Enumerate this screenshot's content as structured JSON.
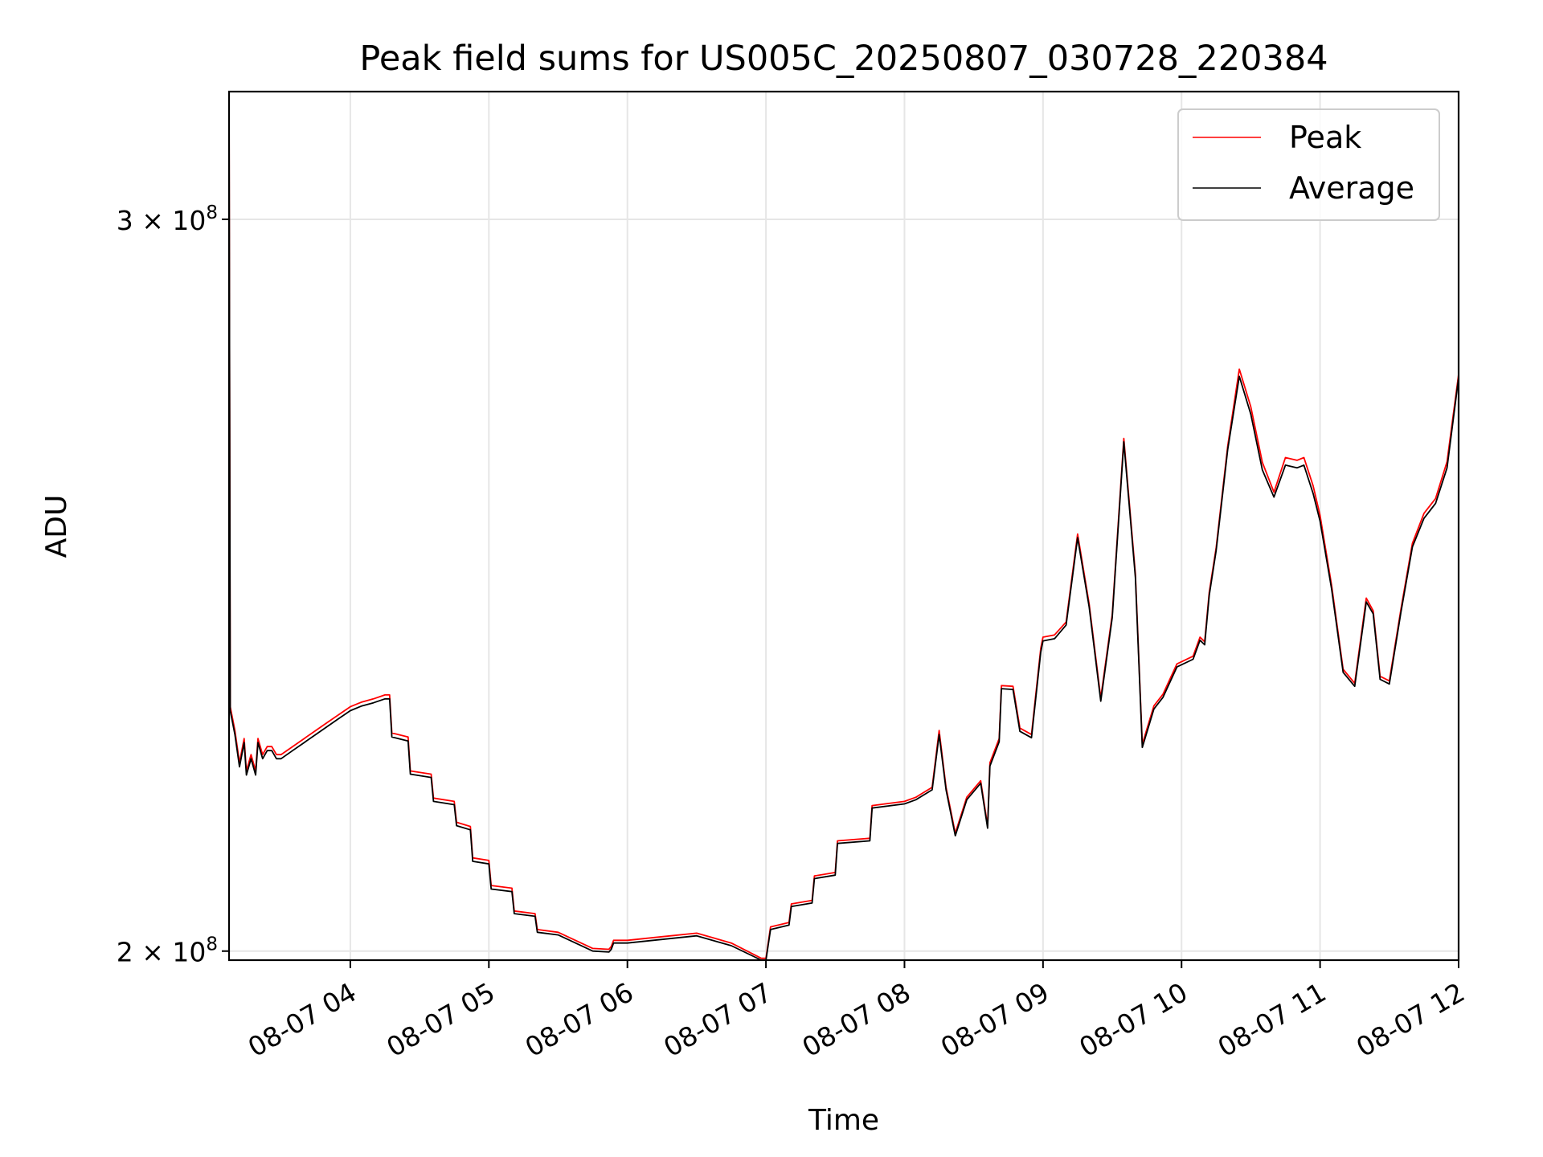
{
  "chart_data": {
    "type": "line",
    "title": "Peak field sums for US005C_20250807_030728_220384",
    "xlabel": "Time",
    "ylabel": "ADU",
    "yscale": "log",
    "xlim": [
      "08-07 03:07:28",
      "08-07 12:00"
    ],
    "ylim": [
      199000000,
      322000000
    ],
    "grid": true,
    "legend_position": "top-right",
    "x_ticks": [
      "08-07 04",
      "08-07 05",
      "08-07 06",
      "08-07 07",
      "08-07 08",
      "08-07 09",
      "08-07 10",
      "08-07 11",
      "08-07 12"
    ],
    "y_ticks": [
      {
        "value": 200000000,
        "mantissa": "2",
        "exponent": "8"
      },
      {
        "value": 300000000,
        "mantissa": "3",
        "exponent": "8"
      }
    ],
    "x": [
      "03:07:28",
      "03:08",
      "03:10",
      "03:12",
      "03:14",
      "03:15",
      "03:17",
      "03:19",
      "03:20",
      "03:22",
      "03:24",
      "03:26",
      "03:28",
      "03:30",
      "03:35",
      "03:40",
      "03:45",
      "03:50",
      "03:55",
      "04:00",
      "04:05",
      "04:10",
      "04:15",
      "04:17",
      "04:18",
      "04:25",
      "04:26",
      "04:35",
      "04:36",
      "04:45",
      "04:46",
      "04:52",
      "04:53",
      "05:00",
      "05:01",
      "05:10",
      "05:11",
      "05:20",
      "05:21",
      "05:30",
      "05:45",
      "05:52",
      "05:53",
      "05:54",
      "06:00",
      "06:15",
      "06:30",
      "06:45",
      "06:58",
      "07:00",
      "07:02",
      "07:10",
      "07:11",
      "07:20",
      "07:21",
      "07:30",
      "07:31",
      "07:45",
      "07:46",
      "08:00",
      "08:05",
      "08:12",
      "08:15",
      "08:18",
      "08:22",
      "08:27",
      "08:33",
      "08:36",
      "08:37",
      "08:41",
      "08:42",
      "08:47",
      "08:50",
      "08:55",
      "08:59",
      "09:00",
      "09:05",
      "09:10",
      "09:15",
      "09:20",
      "09:25",
      "09:30",
      "09:35",
      "09:40",
      "09:43",
      "09:48",
      "09:52",
      "09:58",
      "10:05",
      "10:08",
      "10:10",
      "10:12",
      "10:15",
      "10:20",
      "10:25",
      "10:30",
      "10:35",
      "10:40",
      "10:45",
      "10:50",
      "10:53",
      "10:57",
      "11:00",
      "11:05",
      "11:10",
      "11:15",
      "11:20",
      "11:23",
      "11:26",
      "11:30",
      "11:35",
      "11:40",
      "11:45",
      "11:50",
      "11:55",
      "12:00"
    ],
    "series": [
      {
        "name": "Peak",
        "color": "#ff0000",
        "values": [
          322000000,
          229000000,
          226000000,
          222000000,
          225000000,
          221000000,
          223000000,
          221000000,
          225000000,
          223000000,
          224000000,
          224000000,
          223000000,
          223000000,
          224000000,
          225000000,
          226000000,
          227000000,
          228000000,
          229000000,
          229600000,
          230000000,
          230500000,
          230500000,
          225700000,
          225200000,
          221000000,
          220600000,
          217700000,
          217300000,
          214800000,
          214300000,
          210600000,
          210300000,
          207400000,
          207100000,
          204500000,
          204200000,
          202400000,
          202100000,
          200300000,
          200200000,
          200500000,
          201200000,
          201200000,
          201600000,
          202000000,
          200900000,
          199200000,
          199200000,
          202700000,
          203200000,
          205300000,
          205700000,
          208500000,
          208900000,
          212600000,
          212900000,
          216800000,
          217300000,
          217800000,
          219000000,
          226000000,
          219000000,
          213500000,
          217800000,
          219800000,
          214400000,
          222000000,
          225000000,
          231700000,
          231600000,
          226300000,
          225500000,
          236500000,
          238000000,
          238300000,
          240000000,
          252000000,
          242400000,
          230100000,
          241000000,
          265700000,
          246500000,
          224300000,
          229100000,
          230600000,
          234500000,
          235500000,
          238000000,
          237400000,
          244000000,
          250100000,
          264600000,
          276100000,
          270400000,
          262200000,
          257900000,
          262900000,
          262500000,
          262900000,
          258800000,
          254600000,
          244900000,
          233800000,
          232000000,
          243200000,
          241500000,
          232900000,
          232300000,
          241700000,
          250700000,
          254900000,
          257000000,
          262300000,
          275300000
        ]
      },
      {
        "name": "Average",
        "color": "#000000",
        "values": [
          320000000,
          228500000,
          225500000,
          221500000,
          224500000,
          220500000,
          222500000,
          220500000,
          224500000,
          222500000,
          223500000,
          223500000,
          222500000,
          222500000,
          223500000,
          224500000,
          225500000,
          226500000,
          227500000,
          228500000,
          229100000,
          229500000,
          230000000,
          230000000,
          225200000,
          224700000,
          220600000,
          220200000,
          217300000,
          216900000,
          214400000,
          213900000,
          210200000,
          209900000,
          207000000,
          206700000,
          204200000,
          203900000,
          202100000,
          201800000,
          200000000,
          199900000,
          200200000,
          200900000,
          200900000,
          201300000,
          201700000,
          200600000,
          198900000,
          198900000,
          202400000,
          202900000,
          205000000,
          205400000,
          208200000,
          208600000,
          212300000,
          212600000,
          216500000,
          217000000,
          217500000,
          218700000,
          225500000,
          218700000,
          213200000,
          217500000,
          219500000,
          214100000,
          221600000,
          224600000,
          231300000,
          231200000,
          225900000,
          225100000,
          236000000,
          237500000,
          237800000,
          239600000,
          251500000,
          242000000,
          229700000,
          240600000,
          265200000,
          246000000,
          223900000,
          228700000,
          230200000,
          234100000,
          235100000,
          237600000,
          237000000,
          243600000,
          249700000,
          264100000,
          275000000,
          269300000,
          261100000,
          257200000,
          261800000,
          261400000,
          261800000,
          257700000,
          253800000,
          244400000,
          233400000,
          231600000,
          242700000,
          241100000,
          232500000,
          231900000,
          241300000,
          250200000,
          254200000,
          256300000,
          261400000,
          274800000
        ]
      }
    ]
  }
}
